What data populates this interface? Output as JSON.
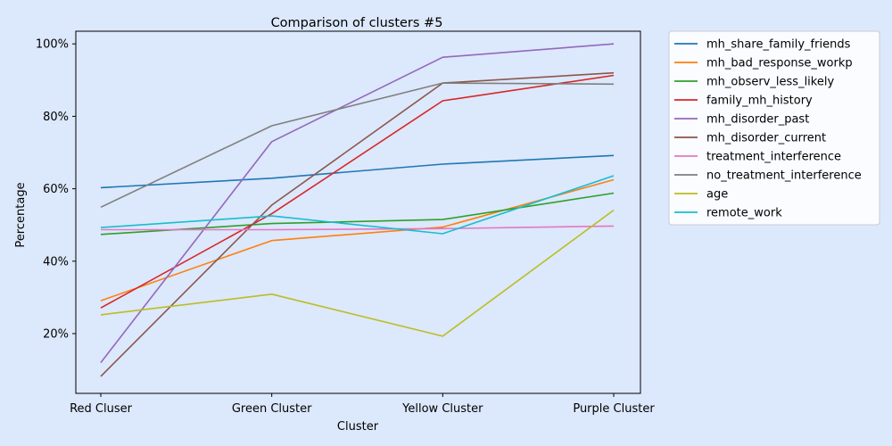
{
  "chart_data": {
    "type": "line",
    "title": "Comparison of clusters #5",
    "xlabel": "Cluster",
    "ylabel": "Percentage",
    "categories": [
      "Red Cluser",
      "Green Cluster",
      "Yellow Cluster",
      "Purple Cluster"
    ],
    "ylim": [
      3.5,
      103.5
    ],
    "yticks": [
      20,
      40,
      60,
      80,
      100
    ],
    "ytick_labels": [
      "20%",
      "40%",
      "60%",
      "80%",
      "100%"
    ],
    "grid": false,
    "legend_position": "outside-right",
    "series": [
      {
        "name": "mh_share_family_friends",
        "color": "#1f77b4",
        "values": [
          60.3,
          62.9,
          66.8,
          69.2
        ]
      },
      {
        "name": "mh_bad_response_workp",
        "color": "#ff7f0e",
        "values": [
          29.1,
          45.7,
          49.4,
          62.5
        ]
      },
      {
        "name": "mh_observ_less_likely",
        "color": "#2ca02c",
        "values": [
          47.4,
          50.4,
          51.5,
          58.8
        ]
      },
      {
        "name": "family_mh_history",
        "color": "#d62728",
        "values": [
          27.1,
          53.1,
          84.3,
          91.3
        ]
      },
      {
        "name": "mh_disorder_past",
        "color": "#9467bd",
        "values": [
          12.0,
          73.0,
          96.3,
          100.0
        ]
      },
      {
        "name": "mh_disorder_current",
        "color": "#8c564b",
        "values": [
          8.2,
          55.5,
          89.2,
          92.0
        ]
      },
      {
        "name": "treatment_interference",
        "color": "#e377c2",
        "values": [
          48.7,
          48.7,
          49.0,
          49.7
        ]
      },
      {
        "name": "no_treatment_interference",
        "color": "#7f7f7f",
        "values": [
          54.9,
          77.4,
          89.2,
          88.9
        ]
      },
      {
        "name": "age",
        "color": "#bcbd22",
        "values": [
          25.2,
          30.9,
          19.3,
          54.1
        ]
      },
      {
        "name": "remote_work",
        "color": "#17becf",
        "values": [
          49.3,
          52.5,
          47.6,
          63.6
        ]
      }
    ]
  }
}
